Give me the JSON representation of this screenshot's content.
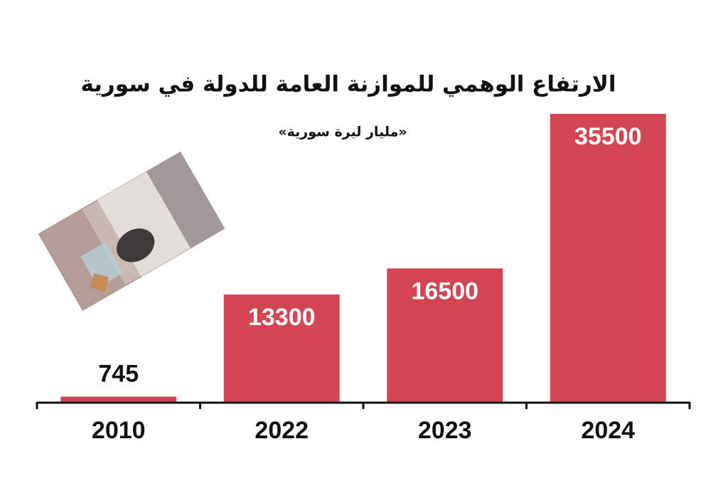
{
  "chart_data": {
    "type": "bar",
    "title": "الارتفاع الوهمي للموازنة العامة للدولة في سورية",
    "subtitle": "«مليار ليرة سورية»",
    "categories": [
      "2010",
      "2022",
      "2023",
      "2024"
    ],
    "values": [
      745,
      13300,
      16500,
      35500
    ],
    "color": "#d34553"
  }
}
